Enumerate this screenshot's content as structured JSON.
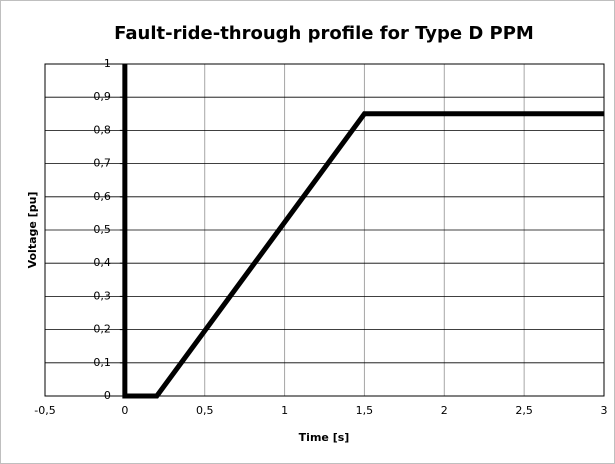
{
  "chart_data": {
    "type": "line",
    "title": "Fault-ride-through profile for Type D PPM",
    "xlabel": "Time [s]",
    "ylabel": "Voltage [pu]",
    "x": [
      0,
      0,
      0.2,
      1.5,
      3
    ],
    "values": [
      1,
      0,
      0,
      0.85,
      0.85
    ],
    "color": "#000000",
    "xlim": [
      -0.5,
      3
    ],
    "xticks": [
      {
        "value": -0.5,
        "label": "-0,5"
      },
      0,
      {
        "value": 0.5,
        "label": "0,5"
      },
      1,
      {
        "value": 1.5,
        "label": "1,5"
      },
      2,
      {
        "value": 2.5,
        "label": "2,5"
      },
      3
    ],
    "ylim": [
      0,
      1
    ],
    "yticks": [
      0,
      {
        "value": 0.1,
        "label": "0,1"
      },
      {
        "value": 0.2,
        "label": "0,2"
      },
      {
        "value": 0.3,
        "label": "0,3"
      },
      {
        "value": 0.4,
        "label": "0,4"
      },
      {
        "value": 0.5,
        "label": "0,5"
      },
      {
        "value": 0.6,
        "label": "0,6"
      },
      {
        "value": 0.7,
        "label": "0,7"
      },
      {
        "value": 0.8,
        "label": "0,8"
      },
      {
        "value": 0.9,
        "label": "0,9"
      },
      1
    ],
    "grid": true
  }
}
